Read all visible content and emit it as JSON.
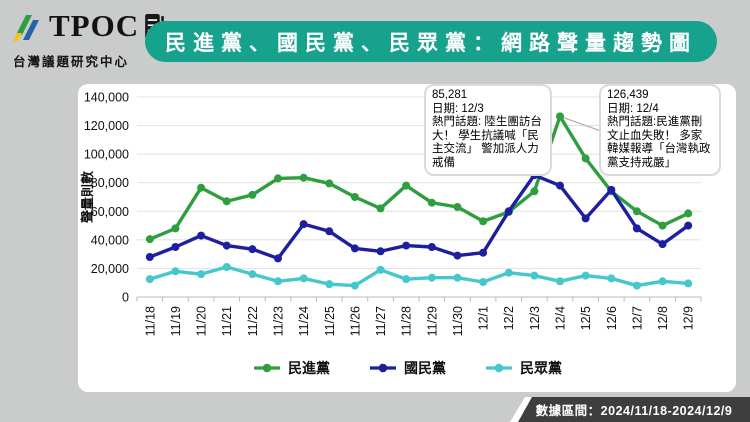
{
  "header": {
    "brand": "TPOC",
    "subtitle": "台灣議題研究中心",
    "title": "民進黨、國民黨、民眾黨：網路聲量趨勢圖",
    "banner_color": "#17a28e"
  },
  "chart_data": {
    "type": "line",
    "title": "民進黨、國民黨、民眾黨：網路聲量趨勢圖",
    "ylabel": "聲量則數",
    "xlabel": "",
    "ylim": [
      0,
      140000
    ],
    "ytick_step": 20000,
    "ytick_labels": [
      "0",
      "20,000",
      "40,000",
      "60,000",
      "80,000",
      "100,000",
      "120,000",
      "140,000"
    ],
    "grid": true,
    "legend_position": "bottom",
    "categories": [
      "11/18",
      "11/19",
      "11/20",
      "11/21",
      "11/22",
      "11/23",
      "11/24",
      "11/25",
      "11/26",
      "11/27",
      "11/28",
      "11/29",
      "11/30",
      "12/1",
      "12/2",
      "12/3",
      "12/4",
      "12/5",
      "12/6",
      "12/7",
      "12/8",
      "12/9"
    ],
    "series": [
      {
        "name": "民進黨",
        "color": "#2e9e3e",
        "values": [
          40500,
          48000,
          76500,
          67000,
          71500,
          83000,
          83500,
          79500,
          70000,
          62000,
          78000,
          66000,
          63000,
          53000,
          59500,
          74000,
          126439,
          97000,
          74000,
          60000,
          50000,
          58500
        ]
      },
      {
        "name": "國民黨",
        "color": "#1e1ea0",
        "values": [
          28000,
          35000,
          43000,
          36000,
          33500,
          27000,
          51000,
          46000,
          34000,
          32000,
          36000,
          35000,
          29000,
          31000,
          60000,
          85281,
          78000,
          55000,
          75000,
          48000,
          37000,
          50000
        ]
      },
      {
        "name": "民眾黨",
        "color": "#45c7cb",
        "values": [
          12500,
          18000,
          16000,
          21000,
          16000,
          11000,
          13000,
          9000,
          8000,
          19000,
          12500,
          13500,
          13500,
          10500,
          17000,
          15000,
          11000,
          15000,
          13000,
          8000,
          11000,
          9500
        ]
      }
    ],
    "annotations": [
      {
        "value": "85,281",
        "date_line": "日期: 12/3",
        "topic_line": "熱門話題: 陸生團訪台大！ 學生抗議喊「民主交流」 警加派人力戒備",
        "series": "國民黨",
        "category": "12/3"
      },
      {
        "value": "126,439",
        "date_line": "日期: 12/4",
        "topic_line": "熱門話題:民進黨刪文止血失敗！ 多家韓媒報導「台灣執政黨支持戒嚴」",
        "series": "民進黨",
        "category": "12/4"
      }
    ]
  },
  "footer": {
    "range_label": "數據區間：2024/11/18-2024/12/9",
    "band_color": "#3e3e3e"
  }
}
